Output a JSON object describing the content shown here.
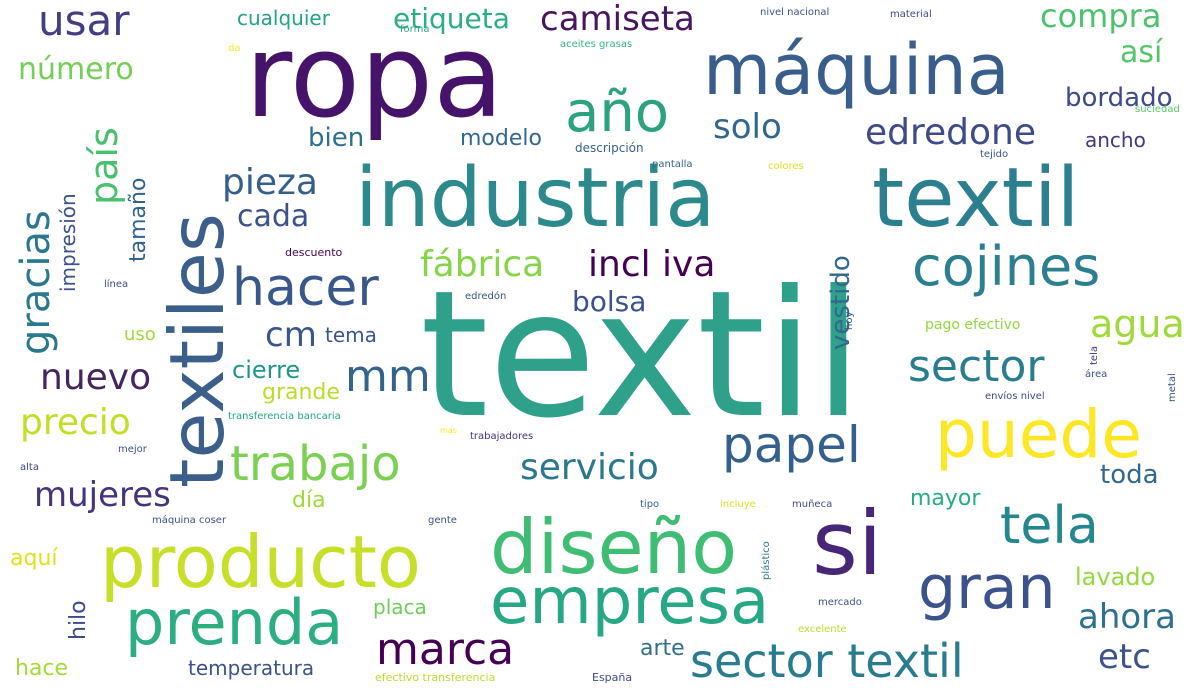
{
  "word_cloud": {
    "words": [
      {
        "text": "textil",
        "color": "#2fa18a"
      },
      {
        "text": "ropa",
        "color": "#46136b"
      },
      {
        "text": "industria",
        "color": "#2c8a8c"
      },
      {
        "text": "textil",
        "color": "#2c7f8e"
      },
      {
        "text": "textiles",
        "color": "#3b5f8a"
      },
      {
        "text": "máquina",
        "color": "#3a5e8c"
      },
      {
        "text": "producto",
        "color": "#c8df2a"
      },
      {
        "text": "diseño",
        "color": "#3fbd74"
      },
      {
        "text": "si",
        "color": "#482677"
      },
      {
        "text": "puede",
        "color": "#fde725"
      },
      {
        "text": "empresa",
        "color": "#27a884"
      },
      {
        "text": "prenda",
        "color": "#2cae80"
      },
      {
        "text": "gran",
        "color": "#3b528b"
      },
      {
        "text": "sector textil",
        "color": "#287c8e"
      },
      {
        "text": "año",
        "color": "#2ca27f"
      },
      {
        "text": "cojines",
        "color": "#2b7f8e"
      },
      {
        "text": "hacer",
        "color": "#38588c"
      },
      {
        "text": "trabajo",
        "color": "#7ad151"
      },
      {
        "text": "papel",
        "color": "#35608d"
      },
      {
        "text": "tela",
        "color": "#24878e"
      },
      {
        "text": "marca",
        "color": "#440154"
      },
      {
        "text": "camiseta",
        "color": "#46175e"
      },
      {
        "text": "usar",
        "color": "#433d84"
      },
      {
        "text": "compra",
        "color": "#4cc26c"
      },
      {
        "text": "edredone",
        "color": "#3e4a89"
      },
      {
        "text": "solo",
        "color": "#31678e"
      },
      {
        "text": "pieza",
        "color": "#355e8d"
      },
      {
        "text": "cada",
        "color": "#3b528b"
      },
      {
        "text": "fábrica",
        "color": "#86d549"
      },
      {
        "text": "incl iva",
        "color": "#440154"
      },
      {
        "text": "bolsa",
        "color": "#3b528b"
      },
      {
        "text": "cm",
        "color": "#39568c"
      },
      {
        "text": "mm",
        "color": "#33638d"
      },
      {
        "text": "nuevo",
        "color": "#46245f"
      },
      {
        "text": "agua",
        "color": "#9fda3a"
      },
      {
        "text": "sector",
        "color": "#287d8e"
      },
      {
        "text": "servicio",
        "color": "#2a788e"
      },
      {
        "text": "mujeres",
        "color": "#46337e"
      },
      {
        "text": "precio",
        "color": "#c2df23"
      },
      {
        "text": "ahora",
        "color": "#2d718e"
      },
      {
        "text": "etc",
        "color": "#3b528b"
      },
      {
        "text": "país",
        "color": "#48c16e"
      },
      {
        "text": "gracias",
        "color": "#2a788e"
      },
      {
        "text": "número",
        "color": "#73d055"
      },
      {
        "text": "etiqueta",
        "color": "#29af7f"
      },
      {
        "text": "así",
        "color": "#55c667"
      },
      {
        "text": "bordado",
        "color": "#3e4a89"
      },
      {
        "text": "bien",
        "color": "#2d708e"
      },
      {
        "text": "modelo",
        "color": "#31688e"
      },
      {
        "text": "ancho",
        "color": "#453781"
      },
      {
        "text": "vestido",
        "color": "#31688e"
      },
      {
        "text": "cualquier",
        "color": "#20a386"
      },
      {
        "text": "tamaño",
        "color": "#33638d"
      },
      {
        "text": "impresión",
        "color": "#3b528b"
      },
      {
        "text": "tema",
        "color": "#39568c"
      },
      {
        "text": "cierre",
        "color": "#1f968b"
      },
      {
        "text": "grande",
        "color": "#b8de29"
      },
      {
        "text": "uso",
        "color": "#a0da39"
      },
      {
        "text": "día",
        "color": "#a0da39"
      },
      {
        "text": "toda",
        "color": "#31688e"
      },
      {
        "text": "mayor",
        "color": "#27ad81"
      },
      {
        "text": "lavado",
        "color": "#95d840"
      },
      {
        "text": "aquí",
        "color": "#dde318"
      },
      {
        "text": "hilo",
        "color": "#3e4a89"
      },
      {
        "text": "hace",
        "color": "#a5db36"
      },
      {
        "text": "temperatura",
        "color": "#3b528b"
      },
      {
        "text": "arte",
        "color": "#2d708e"
      },
      {
        "text": "placa",
        "color": "#6ccd5a"
      },
      {
        "text": "pago efectivo",
        "color": "#93d741"
      },
      {
        "text": "nivel nacional",
        "color": "#3b528b"
      },
      {
        "text": "material",
        "color": "#3e4a89"
      },
      {
        "text": "forma",
        "color": "#29af7f"
      },
      {
        "text": "aceites grasas",
        "color": "#35b779"
      },
      {
        "text": "suciedad",
        "color": "#55c667"
      },
      {
        "text": "descripción",
        "color": "#33638d"
      },
      {
        "text": "pantalla",
        "color": "#33638d"
      },
      {
        "text": "colores",
        "color": "#dde318"
      },
      {
        "text": "tejido",
        "color": "#3b528b"
      },
      {
        "text": "descuento",
        "color": "#440154"
      },
      {
        "text": "edredón",
        "color": "#3b528b"
      },
      {
        "text": "línea",
        "color": "#3e4a89"
      },
      {
        "text": "hoy",
        "color": "#39568c"
      },
      {
        "text": "tela",
        "color": "#46337e"
      },
      {
        "text": "área",
        "color": "#3b528b"
      },
      {
        "text": "metal",
        "color": "#3b528b"
      },
      {
        "text": "envíos nivel",
        "color": "#3e4a89"
      },
      {
        "text": "transferencia bancaria",
        "color": "#22a884"
      },
      {
        "text": "trabajadores",
        "color": "#46337e"
      },
      {
        "text": "mejor",
        "color": "#3b528b"
      },
      {
        "text": "alta",
        "color": "#3e4a89"
      },
      {
        "text": "máquina coser",
        "color": "#3b528b"
      },
      {
        "text": "gente",
        "color": "#3b528b"
      },
      {
        "text": "tipo",
        "color": "#33638d"
      },
      {
        "text": "incluye",
        "color": "#dde318"
      },
      {
        "text": "muñeca",
        "color": "#3e4a89"
      },
      {
        "text": "plástico",
        "color": "#2a788e"
      },
      {
        "text": "mercado",
        "color": "#3b528b"
      },
      {
        "text": "excelente",
        "color": "#b8de29"
      },
      {
        "text": "efectivo transferencia",
        "color": "#b8de29"
      },
      {
        "text": "España",
        "color": "#3e4a89"
      },
      {
        "text": "da",
        "color": "#fde725"
      },
      {
        "text": "mas",
        "color": "#fde725"
      }
    ]
  }
}
